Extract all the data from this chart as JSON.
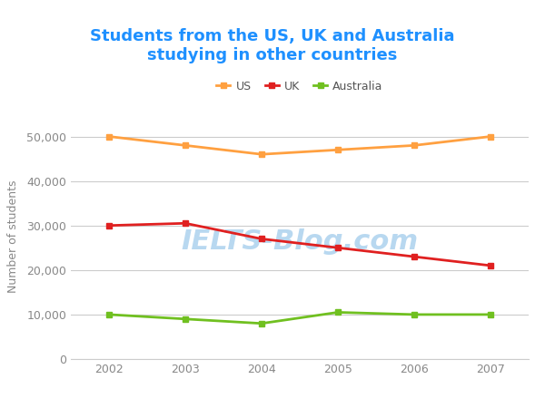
{
  "title": "Students from the US, UK and Australia\nstudying in other countries",
  "title_color": "#1E90FF",
  "ylabel": "Number of students",
  "years": [
    2002,
    2003,
    2004,
    2005,
    2006,
    2007
  ],
  "us_values": [
    50000,
    48000,
    46000,
    47000,
    48000,
    50000
  ],
  "uk_values": [
    30000,
    30500,
    27000,
    25000,
    23000,
    21000
  ],
  "australia_values": [
    10000,
    9000,
    8000,
    10500,
    10000,
    10000
  ],
  "us_color": "#FFA040",
  "uk_color": "#E02020",
  "australia_color": "#70C020",
  "background_color": "#ffffff",
  "grid_color": "#cccccc",
  "ylim": [
    0,
    55000
  ],
  "yticks": [
    0,
    10000,
    20000,
    30000,
    40000,
    50000
  ],
  "watermark_text": "IELTS-Blog.com",
  "watermark_color": "#b8d8f0",
  "line_width": 2.0,
  "marker_size": 5,
  "tick_color": "#aaaaaa",
  "tick_label_color": "#888888"
}
